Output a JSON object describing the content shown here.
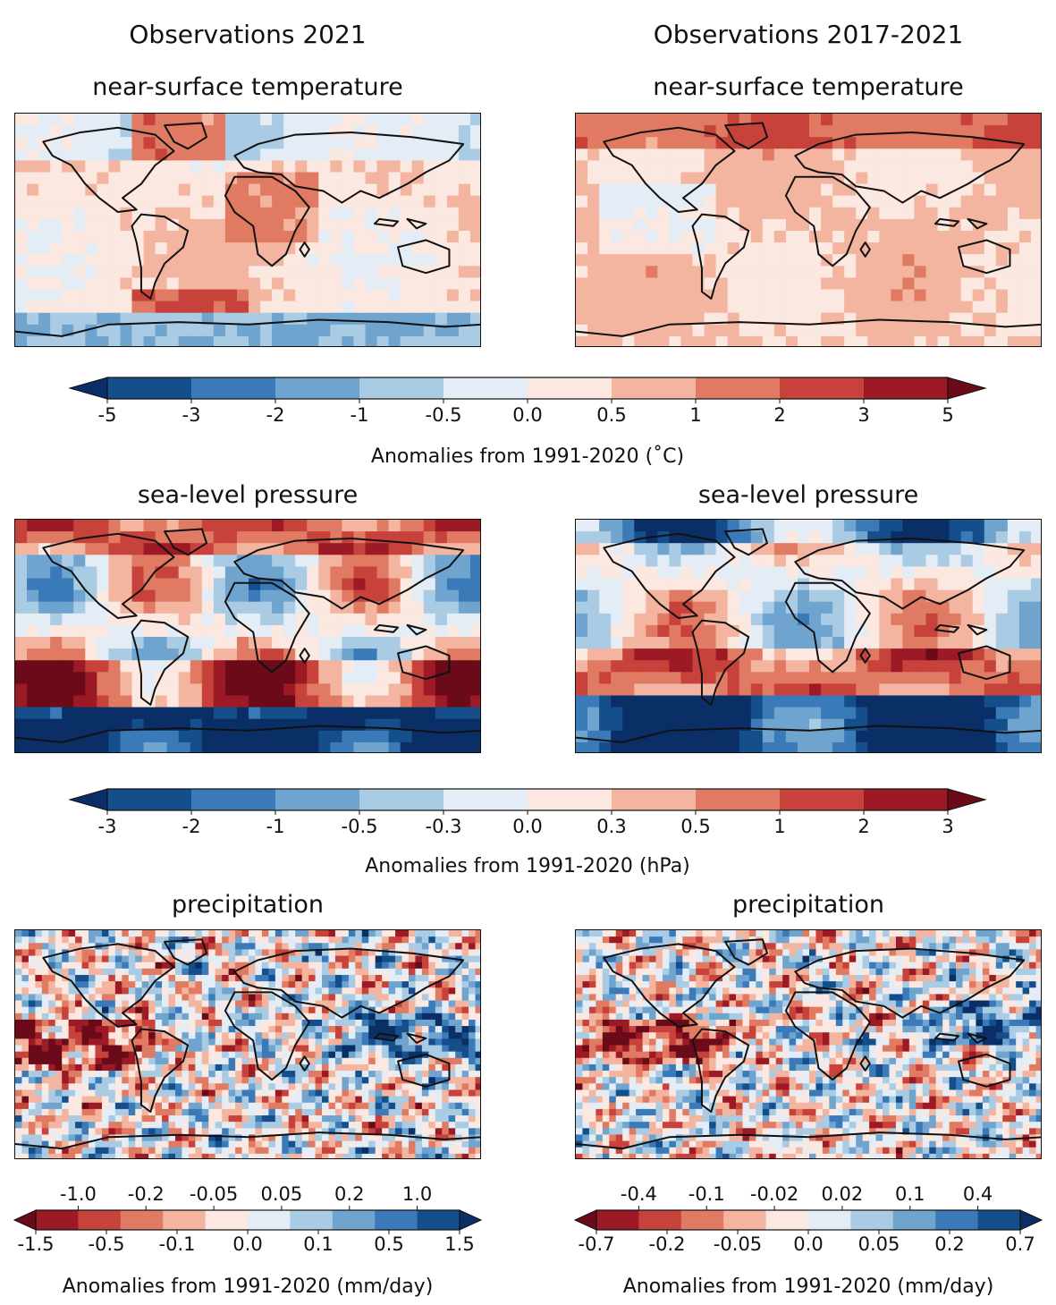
{
  "columns": [
    {
      "title": "Observations 2021"
    },
    {
      "title": "Observations 2017-2021"
    }
  ],
  "rows": [
    {
      "variable": "near-surface temperature"
    },
    {
      "variable": "sea-level pressure"
    },
    {
      "variable": "precipitation"
    }
  ],
  "colorbars": {
    "temperature": {
      "label": "Anomalies from 1991-2020 (˚C)",
      "ticks": [
        "-5",
        "-3",
        "-2",
        "-1",
        "-0.5",
        "0.0",
        "0.5",
        "1",
        "2",
        "3",
        "5"
      ],
      "colors": [
        "#154f8b",
        "#3b7ab8",
        "#6fa4cf",
        "#a9cbe3",
        "#e4edf5",
        "#fbe8e0",
        "#f4b5a0",
        "#e07a62",
        "#c8423c",
        "#9c1a25"
      ],
      "extend_low": "#0a2f66",
      "extend_high": "#6b0a18"
    },
    "pressure": {
      "label": "Anomalies from 1991-2020 (hPa)",
      "ticks": [
        "-3",
        "-2",
        "-1",
        "-0.5",
        "-0.3",
        "0.0",
        "0.3",
        "0.5",
        "1",
        "2",
        "3"
      ],
      "colors": [
        "#154f8b",
        "#3b7ab8",
        "#6fa4cf",
        "#a9cbe3",
        "#e4edf5",
        "#fbe8e0",
        "#f4b5a0",
        "#e07a62",
        "#c8423c",
        "#9c1a25"
      ],
      "extend_low": "#0a2f66",
      "extend_high": "#6b0a18"
    },
    "precip_2021": {
      "label": "Anomalies from 1991-2020 (mm/day)",
      "ticks_top": [
        "-1.0",
        "-0.2",
        "-0.05",
        "0.05",
        "0.2",
        "1.0"
      ],
      "ticks_bottom": [
        "-1.5",
        "-0.5",
        "-0.1",
        "0.0",
        "0.1",
        "0.5",
        "1.5"
      ],
      "colors": [
        "#9c1a25",
        "#c8423c",
        "#e07a62",
        "#f4b5a0",
        "#fbe8e0",
        "#e4edf5",
        "#a9cbe3",
        "#6fa4cf",
        "#3b7ab8",
        "#154f8b"
      ],
      "extend_low": "#6b0a18",
      "extend_high": "#0a2f66"
    },
    "precip_5yr": {
      "label": "Anomalies from 1991-2020 (mm/day)",
      "ticks_top": [
        "-0.4",
        "-0.1",
        "-0.02",
        "0.02",
        "0.1",
        "0.4"
      ],
      "ticks_bottom": [
        "-0.7",
        "-0.2",
        "-0.05",
        "0.0",
        "0.05",
        "0.2",
        "0.7"
      ],
      "colors": [
        "#9c1a25",
        "#c8423c",
        "#e07a62",
        "#f4b5a0",
        "#fbe8e0",
        "#e4edf5",
        "#a9cbe3",
        "#6fa4cf",
        "#3b7ab8",
        "#154f8b"
      ],
      "extend_low": "#6b0a18",
      "extend_high": "#0a2f66"
    }
  }
}
